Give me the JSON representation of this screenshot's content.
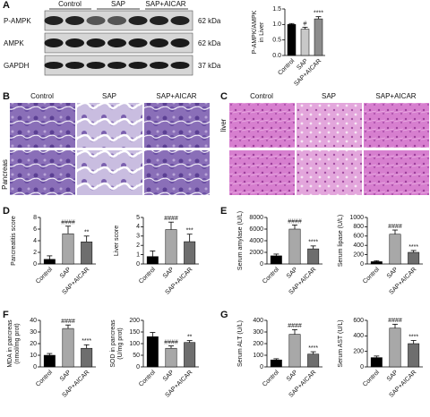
{
  "figure": {
    "panel_labels": [
      "A",
      "B",
      "C",
      "D",
      "E",
      "F",
      "G"
    ],
    "blot": {
      "lanes": [
        "Control",
        "SAP",
        "SAP+AICAR"
      ],
      "rows": [
        "P-AMPK",
        "AMPK",
        "GAPDH"
      ],
      "sizes": [
        "62 kDa",
        "62 kDa",
        "37 kDa"
      ]
    },
    "pancreas_images": {
      "columns": [
        "Control",
        "SAP",
        "SAP+AICAR"
      ],
      "side_label": "Pancreas"
    },
    "liver_images": {
      "columns": [
        "Control",
        "SAP",
        "SAP+AICAR"
      ],
      "side_label": "liver"
    }
  },
  "chart_data": [
    {
      "type": "bar",
      "ylabel": [
        "P-AMPK/AMPK",
        "in Liver"
      ],
      "categories": [
        "Control",
        "SAP",
        "SAP+AICAR"
      ],
      "values": [
        1.0,
        0.85,
        1.18
      ],
      "errors": [
        0.03,
        0.06,
        0.07
      ],
      "significance": [
        null,
        "#",
        "****"
      ],
      "colors": [
        "#000000",
        "#c8c8c8",
        "#8c8c8c"
      ],
      "ylim": [
        0,
        1.5
      ],
      "yticks": [
        {
          "value": 0,
          "label": "0.0"
        },
        {
          "value": 0.5,
          "label": "0.5"
        },
        {
          "value": 1,
          "label": "1.0"
        },
        {
          "value": 1.5,
          "label": "1.5"
        }
      ]
    },
    {
      "type": "bar",
      "ylabel": [
        "Pancreatitis score"
      ],
      "categories": [
        "Control",
        "SAP",
        "SAP+AICAR"
      ],
      "values": [
        0.8,
        5.2,
        3.8
      ],
      "errors": [
        0.6,
        1.3,
        1.0
      ],
      "significance": [
        null,
        "####",
        "**"
      ],
      "colors": [
        "#000000",
        "#a8a8a8",
        "#6e6e6e"
      ],
      "ylim": [
        0,
        8
      ],
      "yticks": [
        0,
        2,
        4,
        6,
        8
      ]
    },
    {
      "type": "bar",
      "ylabel": [
        "Liver score"
      ],
      "categories": [
        "Control",
        "SAP",
        "SAP+AICAR"
      ],
      "values": [
        0.8,
        3.7,
        2.4
      ],
      "errors": [
        0.6,
        0.8,
        0.8
      ],
      "significance": [
        null,
        "####",
        "***"
      ],
      "colors": [
        "#000000",
        "#a8a8a8",
        "#6e6e6e"
      ],
      "ylim": [
        0,
        5
      ],
      "yticks": [
        0,
        1,
        2,
        3,
        4,
        5
      ]
    },
    {
      "type": "bar",
      "ylabel": [
        "Serum amylase (U/L)"
      ],
      "categories": [
        "Control",
        "SAP",
        "SAP+AICAR"
      ],
      "values": [
        1400,
        6000,
        2600
      ],
      "errors": [
        300,
        700,
        500
      ],
      "significance": [
        null,
        "####",
        "****"
      ],
      "colors": [
        "#000000",
        "#a8a8a8",
        "#6e6e6e"
      ],
      "ylim": [
        0,
        8000
      ],
      "yticks": [
        0,
        2000,
        4000,
        6000,
        8000
      ]
    },
    {
      "type": "bar",
      "ylabel": [
        "Serum lipase (U/L)"
      ],
      "categories": [
        "Control",
        "SAP",
        "SAP+AICAR"
      ],
      "values": [
        50,
        640,
        250
      ],
      "errors": [
        20,
        90,
        40
      ],
      "significance": [
        null,
        "####",
        "****"
      ],
      "colors": [
        "#000000",
        "#a8a8a8",
        "#6e6e6e"
      ],
      "ylim": [
        0,
        1000
      ],
      "yticks": [
        0,
        200,
        400,
        600,
        800,
        1000
      ]
    },
    {
      "type": "bar",
      "ylabel": [
        "MDA in pancreas",
        "(nmol/mg prot)"
      ],
      "categories": [
        "Control",
        "SAP",
        "SAP+AICAR"
      ],
      "values": [
        10,
        33,
        16
      ],
      "errors": [
        1.5,
        3,
        3
      ],
      "significance": [
        null,
        "####",
        "****"
      ],
      "colors": [
        "#000000",
        "#a8a8a8",
        "#6e6e6e"
      ],
      "ylim": [
        0,
        40
      ],
      "yticks": [
        0,
        10,
        20,
        30,
        40
      ]
    },
    {
      "type": "bar",
      "ylabel": [
        "SOD in pancreas",
        "(U/mg prot)"
      ],
      "categories": [
        "Control",
        "SAP",
        "SAP+AICAR"
      ],
      "values": [
        130,
        80,
        105
      ],
      "errors": [
        18,
        10,
        8
      ],
      "significance": [
        null,
        "####",
        "**"
      ],
      "colors": [
        "#000000",
        "#a8a8a8",
        "#6e6e6e"
      ],
      "ylim": [
        0,
        200
      ],
      "yticks": [
        0,
        50,
        100,
        150,
        200
      ]
    },
    {
      "type": "bar",
      "ylabel": [
        "Serum ALT (U/L)"
      ],
      "categories": [
        "Control",
        "SAP",
        "SAP+AICAR"
      ],
      "values": [
        60,
        280,
        110
      ],
      "errors": [
        10,
        40,
        20
      ],
      "significance": [
        null,
        "####",
        "****"
      ],
      "colors": [
        "#000000",
        "#a8a8a8",
        "#6e6e6e"
      ],
      "ylim": [
        0,
        400
      ],
      "yticks": [
        0,
        100,
        200,
        300,
        400
      ]
    },
    {
      "type": "bar",
      "ylabel": [
        "Serum AST (U/L)"
      ],
      "categories": [
        "Control",
        "SAP",
        "SAP+AICAR"
      ],
      "values": [
        120,
        500,
        300
      ],
      "errors": [
        20,
        50,
        40
      ],
      "significance": [
        null,
        "####",
        "****"
      ],
      "colors": [
        "#000000",
        "#a8a8a8",
        "#6e6e6e"
      ],
      "ylim": [
        0,
        600
      ],
      "yticks": [
        0,
        200,
        400,
        600
      ]
    }
  ]
}
